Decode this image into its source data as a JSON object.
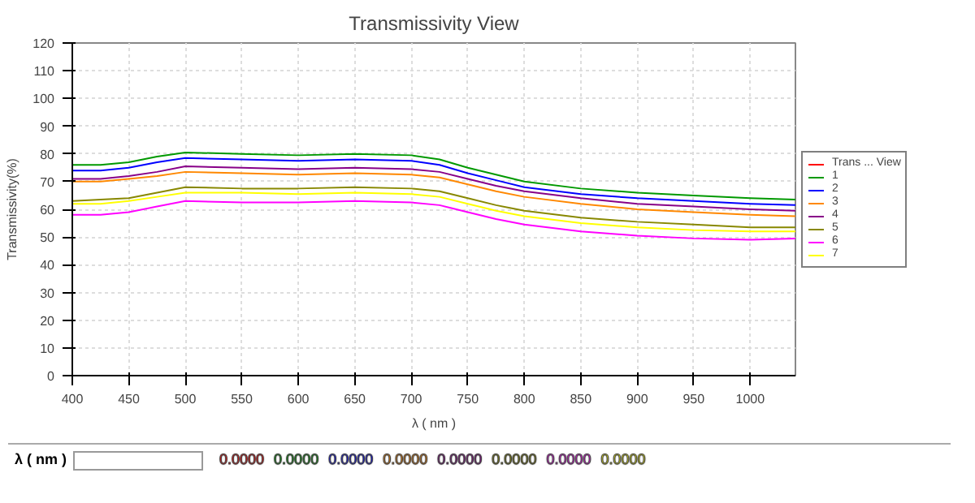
{
  "chart_data": {
    "type": "line",
    "title": "Transmissivity View",
    "xlabel": "λ ( nm )",
    "ylabel": "Transmissivity(%)",
    "x": [
      400,
      425,
      450,
      475,
      500,
      550,
      600,
      650,
      700,
      725,
      750,
      775,
      800,
      850,
      900,
      950,
      1000,
      1040
    ],
    "series": [
      {
        "name": "Trans ... View",
        "color": "#ff0000",
        "values": [
          null,
          null,
          null,
          null,
          null,
          null,
          null,
          null,
          null,
          null,
          null,
          null,
          null,
          null,
          null,
          null,
          null,
          null
        ]
      },
      {
        "name": "1",
        "color": "#009900",
        "values": [
          76,
          76,
          77,
          79,
          80.5,
          80,
          79.5,
          80,
          79.5,
          78,
          75,
          72.5,
          70,
          67.5,
          66,
          65,
          64,
          63.5
        ]
      },
      {
        "name": "2",
        "color": "#0000ff",
        "values": [
          74,
          74,
          75,
          77,
          78.5,
          78,
          77.5,
          78,
          77.5,
          76,
          73,
          70.5,
          68,
          65.5,
          64,
          63,
          62,
          61.5
        ]
      },
      {
        "name": "3",
        "color": "#ff8800",
        "values": [
          70,
          70,
          71,
          72,
          73.5,
          73,
          72.5,
          73,
          72.5,
          71.5,
          69,
          66.5,
          64.5,
          62,
          60,
          59,
          58,
          57.5
        ]
      },
      {
        "name": "4",
        "color": "#880088",
        "values": [
          71,
          71,
          72,
          73.5,
          75.5,
          75,
          74.5,
          75,
          74.5,
          73.5,
          71,
          68.5,
          66.5,
          64,
          62,
          61,
          60,
          59.5
        ]
      },
      {
        "name": "5",
        "color": "#888800",
        "values": [
          63,
          63.5,
          64,
          66,
          68,
          67.5,
          67.5,
          68,
          67.5,
          66.5,
          64,
          61.5,
          59.5,
          57,
          55.5,
          54.5,
          53.5,
          53.5
        ]
      },
      {
        "name": "6",
        "color": "#ff00ff",
        "values": [
          58,
          58,
          59,
          61,
          63,
          62.5,
          62.5,
          63,
          62.5,
          61.5,
          59,
          56.5,
          54.5,
          52,
          50.5,
          49.5,
          49,
          49.5
        ]
      },
      {
        "name": "7",
        "color": "#ffff00",
        "values": [
          62,
          62,
          63,
          64.5,
          66,
          66,
          65.5,
          66,
          65.5,
          64.5,
          62,
          59.5,
          57.5,
          55,
          53.5,
          52.5,
          52,
          52
        ]
      }
    ],
    "xlim": [
      400,
      1040
    ],
    "xticks": [
      400,
      450,
      500,
      550,
      600,
      650,
      700,
      750,
      800,
      850,
      900,
      950,
      1000
    ],
    "ylim": [
      0,
      120
    ],
    "yticks": [
      0,
      10,
      20,
      30,
      40,
      50,
      60,
      70,
      80,
      90,
      100,
      110,
      120
    ],
    "grid": true,
    "legend": "right",
    "line_style": "solid",
    "marker": "none",
    "annotations": [
      "λ ( nm )",
      "0.0000",
      "0.0000",
      "0.0000",
      "0.0000",
      "0.0000",
      "0.0000",
      "0.0000",
      "0.0000"
    ]
  }
}
